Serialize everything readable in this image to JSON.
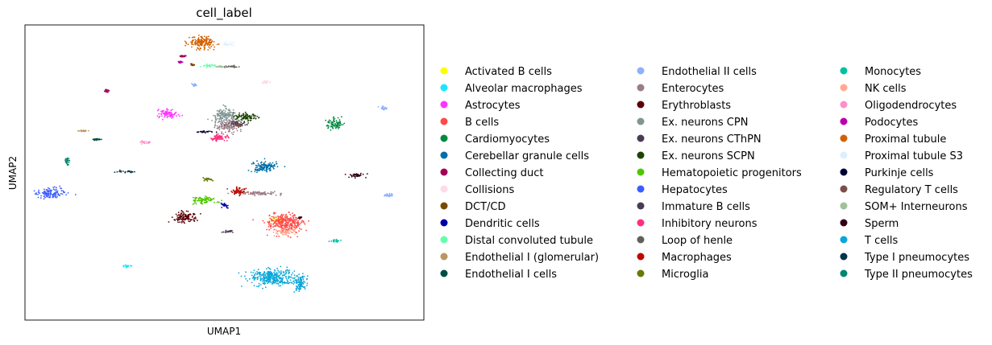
{
  "chart_data": {
    "type": "scatter",
    "title": "cell_label",
    "xlabel": "UMAP1",
    "ylabel": "UMAP2",
    "grid": false,
    "legend_placement": "right",
    "series": [
      {
        "name": "Activated B cells",
        "color": "#ffff00",
        "clusters": [
          [
            6.35,
            5.75,
            0.2,
            0.15
          ]
        ]
      },
      {
        "name": "Alveolar macrophages",
        "color": "#1ce6ff",
        "clusters": [
          [
            2.55,
            3.1,
            0.1,
            0.08
          ]
        ]
      },
      {
        "name": "Astrocytes",
        "color": "#ff34ff",
        "clusters": [
          [
            3.6,
            11.9,
            0.25,
            0.25
          ]
        ]
      },
      {
        "name": "B cells",
        "color": "#ff4a46",
        "clusters": [
          [
            6.5,
            5.6,
            0.45,
            0.5
          ]
        ]
      },
      {
        "name": "Cardiomyocytes",
        "color": "#008941",
        "clusters": [
          [
            7.75,
            11.3,
            0.2,
            0.32
          ]
        ]
      },
      {
        "name": "Cerebellar granule cells",
        "color": "#006fa6",
        "clusters": [
          [
            6.0,
            8.85,
            0.32,
            0.3
          ]
        ]
      },
      {
        "name": "Collecting duct",
        "color": "#a30059",
        "clusters": [
          [
            2.05,
            13.2,
            0.05,
            0.08
          ],
          [
            3.95,
            15.2,
            0.06,
            0.05
          ]
        ]
      },
      {
        "name": "Collisions",
        "color": "#ffdbe5",
        "clusters": [
          [
            6.05,
            13.7,
            0.08,
            0.1
          ]
        ]
      },
      {
        "name": "DCT/CD",
        "color": "#7a4900",
        "clusters": [
          [
            4.2,
            14.7,
            0.06,
            0.05
          ]
        ]
      },
      {
        "name": "Dendritic cells",
        "color": "#0000a6",
        "clusters": [
          [
            5.0,
            6.6,
            0.12,
            0.15
          ]
        ]
      },
      {
        "name": "Distal convoluted tubule",
        "color": "#63ffac",
        "clusters": [
          [
            4.6,
            14.65,
            0.15,
            0.1
          ]
        ]
      },
      {
        "name": "Endothelial I (glomerular)",
        "color": "#b79762",
        "clusters": [
          [
            1.45,
            10.9,
            0.1,
            0.04
          ]
        ]
      },
      {
        "name": "Endothelial I cells",
        "color": "#004d43",
        "clusters": [
          [
            1.8,
            10.4,
            0.12,
            0.06
          ]
        ]
      },
      {
        "name": "Endothelial II cells",
        "color": "#8fb0ff",
        "clusters": [
          [
            9.0,
            12.2,
            0.1,
            0.12
          ],
          [
            9.1,
            7.2,
            0.12,
            0.1
          ],
          [
            4.25,
            13.55,
            0.05,
            0.06
          ]
        ]
      },
      {
        "name": "Enterocytes",
        "color": "#997d87",
        "clusters": [
          [
            5.9,
            7.3,
            0.6,
            0.1
          ],
          [
            5.1,
            11.2,
            0.3,
            0.35
          ]
        ]
      },
      {
        "name": "Erythroblasts",
        "color": "#5a0007",
        "clusters": [
          [
            4.0,
            5.95,
            0.3,
            0.3
          ]
        ]
      },
      {
        "name": "Ex. neurons CPN",
        "color": "#809693",
        "clusters": [
          [
            5.0,
            11.8,
            0.3,
            0.35
          ]
        ]
      },
      {
        "name": "Ex. neurons CThPN",
        "color": "#4a3b53",
        "clusters": [
          [
            5.3,
            11.3,
            0.2,
            0.15
          ]
        ]
      },
      {
        "name": "Ex. neurons SCPN",
        "color": "#1b4400",
        "clusters": [
          [
            5.5,
            11.7,
            0.3,
            0.22
          ]
        ]
      },
      {
        "name": "Hematopoietic progenitors",
        "color": "#4fc601",
        "clusters": [
          [
            4.5,
            6.9,
            0.32,
            0.2
          ]
        ]
      },
      {
        "name": "Hepatocytes",
        "color": "#3b5dff",
        "clusters": [
          [
            0.65,
            7.3,
            0.35,
            0.25
          ]
        ]
      },
      {
        "name": "Immature B cells",
        "color": "#4a3b53",
        "clusters": [
          [
            5.1,
            5.1,
            0.15,
            0.05
          ]
        ]
      },
      {
        "name": "Inhibitory neurons",
        "color": "#ff2f80",
        "clusters": [
          [
            4.85,
            10.5,
            0.25,
            0.2
          ]
        ]
      },
      {
        "name": "Loop of henle",
        "color": "#61615a",
        "clusters": [
          [
            5.2,
            14.6,
            0.2,
            0.05
          ]
        ]
      },
      {
        "name": "Macrophages",
        "color": "#ba0900",
        "clusters": [
          [
            5.35,
            7.45,
            0.2,
            0.2
          ]
        ]
      },
      {
        "name": "Microglia",
        "color": "#6b7900",
        "clusters": [
          [
            4.6,
            8.1,
            0.15,
            0.1
          ]
        ]
      },
      {
        "name": "Monocytes",
        "color": "#00c2a0",
        "clusters": [
          [
            7.8,
            4.55,
            0.12,
            0.1
          ]
        ]
      },
      {
        "name": "NK cells",
        "color": "#ffaa92",
        "clusters": [
          [
            6.5,
            5.1,
            0.25,
            0.2
          ]
        ]
      },
      {
        "name": "Oligodendrocytes",
        "color": "#ff90c9",
        "clusters": [
          [
            3.0,
            10.25,
            0.15,
            0.08
          ]
        ]
      },
      {
        "name": "Podocytes",
        "color": "#b903aa",
        "clusters": [
          [
            3.9,
            14.85,
            0.06,
            0.05
          ]
        ]
      },
      {
        "name": "Proximal tubule",
        "color": "#d16100",
        "clusters": [
          [
            4.45,
            16.0,
            0.35,
            0.35
          ]
        ]
      },
      {
        "name": "Proximal tubule S3",
        "color": "#ddefff",
        "clusters": [
          [
            5.1,
            15.9,
            0.15,
            0.12
          ]
        ]
      },
      {
        "name": "Purkinje cells",
        "color": "#000035",
        "clusters": [
          [
            4.5,
            10.85,
            0.2,
            0.05
          ]
        ]
      },
      {
        "name": "Regulatory T cells",
        "color": "#7b4f4b",
        "clusters": [
          [
            5.35,
            11.2,
            0.1,
            0.08
          ]
        ]
      },
      {
        "name": "SOM+ Interneurons",
        "color": "#a1c299",
        "clusters": [
          [
            4.9,
            14.6,
            0.12,
            0.05
          ]
        ]
      },
      {
        "name": "Sperm",
        "color": "#300018",
        "clusters": [
          [
            8.3,
            8.35,
            0.22,
            0.12
          ],
          [
            6.9,
            5.9,
            0.04,
            0.04
          ]
        ]
      },
      {
        "name": "T cells",
        "color": "#0aa6d8",
        "clusters": [
          [
            6.2,
            2.45,
            0.55,
            0.45
          ],
          [
            6.9,
            2.15,
            0.15,
            0.45
          ]
        ]
      },
      {
        "name": "Type I pneumocytes",
        "color": "#013349",
        "clusters": [
          [
            2.5,
            8.55,
            0.25,
            0.06
          ]
        ]
      },
      {
        "name": "Type II pneumocytes",
        "color": "#00846f",
        "clusters": [
          [
            1.05,
            9.15,
            0.05,
            0.2
          ]
        ]
      }
    ],
    "xlim": [
      0,
      10
    ],
    "ylim": [
      0,
      17
    ]
  }
}
